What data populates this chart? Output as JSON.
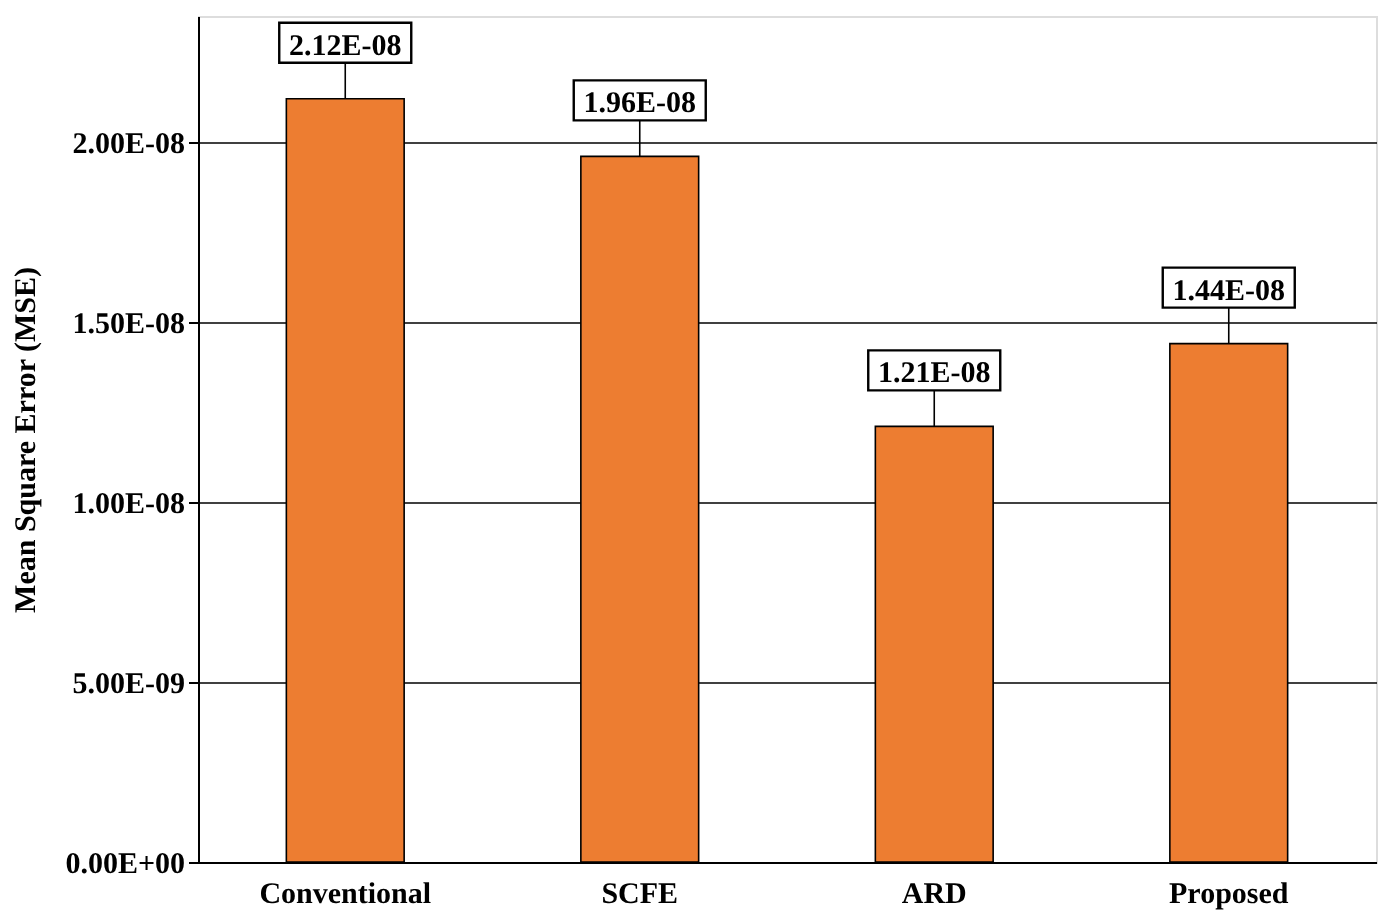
{
  "chart_data": {
    "type": "bar",
    "ylabel": "Mean Square Error (MSE)",
    "categories": [
      "Conventional",
      "SCFE",
      "ARD",
      "Proposed"
    ],
    "values": [
      2.12e-08,
      1.96e-08,
      1.21e-08,
      1.44e-08
    ],
    "value_labels": [
      "2.12E-08",
      "1.96E-08",
      "1.21E-08",
      "1.44E-08"
    ],
    "color": "#ed7d31",
    "ylim": [
      0,
      2.35e-08
    ],
    "yticks": [
      {
        "value": 0,
        "label": "0.00E+00"
      },
      {
        "value": 5e-09,
        "label": "5.00E-09"
      },
      {
        "value": 1e-08,
        "label": "1.00E-08"
      },
      {
        "value": 1.5e-08,
        "label": "1.50E-08"
      },
      {
        "value": 2e-08,
        "label": "2.00E-08"
      }
    ],
    "grid": "y"
  }
}
